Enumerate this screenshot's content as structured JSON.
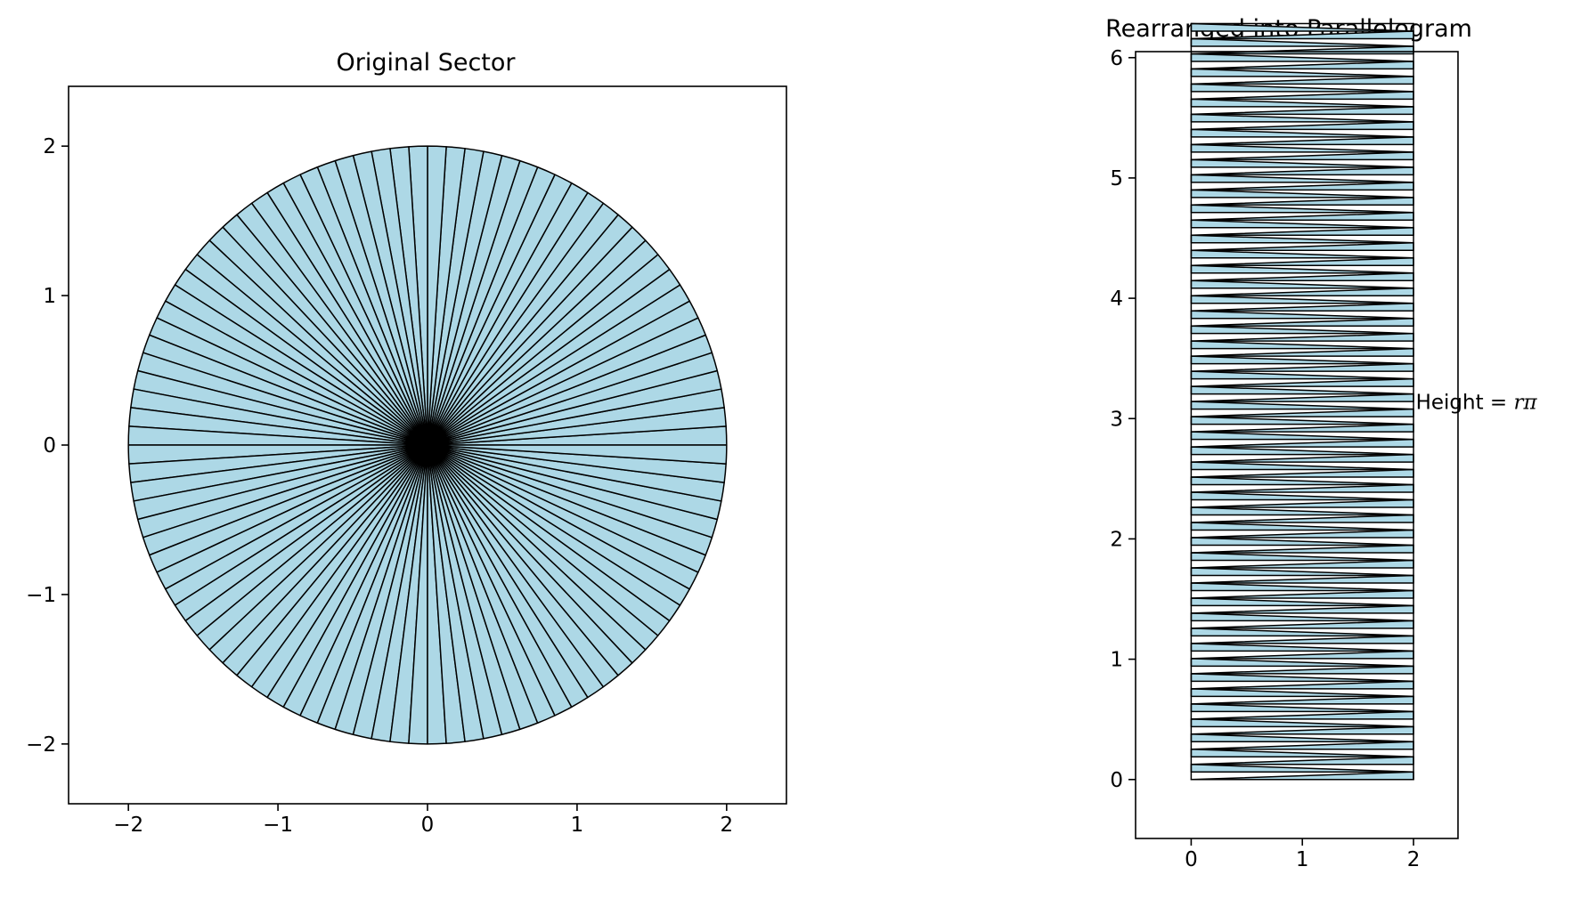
{
  "chart_data": [
    {
      "type": "area",
      "title": "Original Sector",
      "xlabel": "",
      "ylabel": "",
      "shape": "circle divided into equal sectors",
      "radius": 2,
      "center": [
        0,
        0
      ],
      "sector_count": 100,
      "fill_color": "#add8e6",
      "edge_color": "#000000",
      "xlim": [
        -2.4,
        2.4
      ],
      "ylim": [
        -2.4,
        2.4
      ],
      "xticks": [
        -2,
        -1,
        0,
        1,
        2
      ],
      "yticks": [
        -2,
        -1,
        0,
        1,
        2
      ],
      "xtick_labels": [
        "−2",
        "−1",
        "0",
        "1",
        "2"
      ],
      "ytick_labels": [
        "−2",
        "−1",
        "0",
        "1",
        "2"
      ],
      "grid": false
    },
    {
      "type": "area",
      "title": "Rearranged into Parallelogram",
      "xlabel": "",
      "ylabel": "",
      "shape": "sector wedges stacked into a rectangle",
      "width": 2,
      "height": 6.2832,
      "wedge_count": 100,
      "fill_color": "#add8e6",
      "edge_color": "#000000",
      "xlim": [
        -0.5,
        2.4
      ],
      "ylim": [
        -0.49,
        6.05
      ],
      "xticks": [
        0,
        1,
        2
      ],
      "yticks": [
        0,
        1,
        2,
        3,
        4,
        5,
        6
      ],
      "xtick_labels": [
        "0",
        "1",
        "2"
      ],
      "ytick_labels": [
        "0",
        "1",
        "2",
        "3",
        "4",
        "5",
        "6"
      ],
      "annotation": {
        "text": "Height = ",
        "math": "rπ",
        "x": 2.02,
        "y": 3.14
      },
      "grid": false
    }
  ]
}
